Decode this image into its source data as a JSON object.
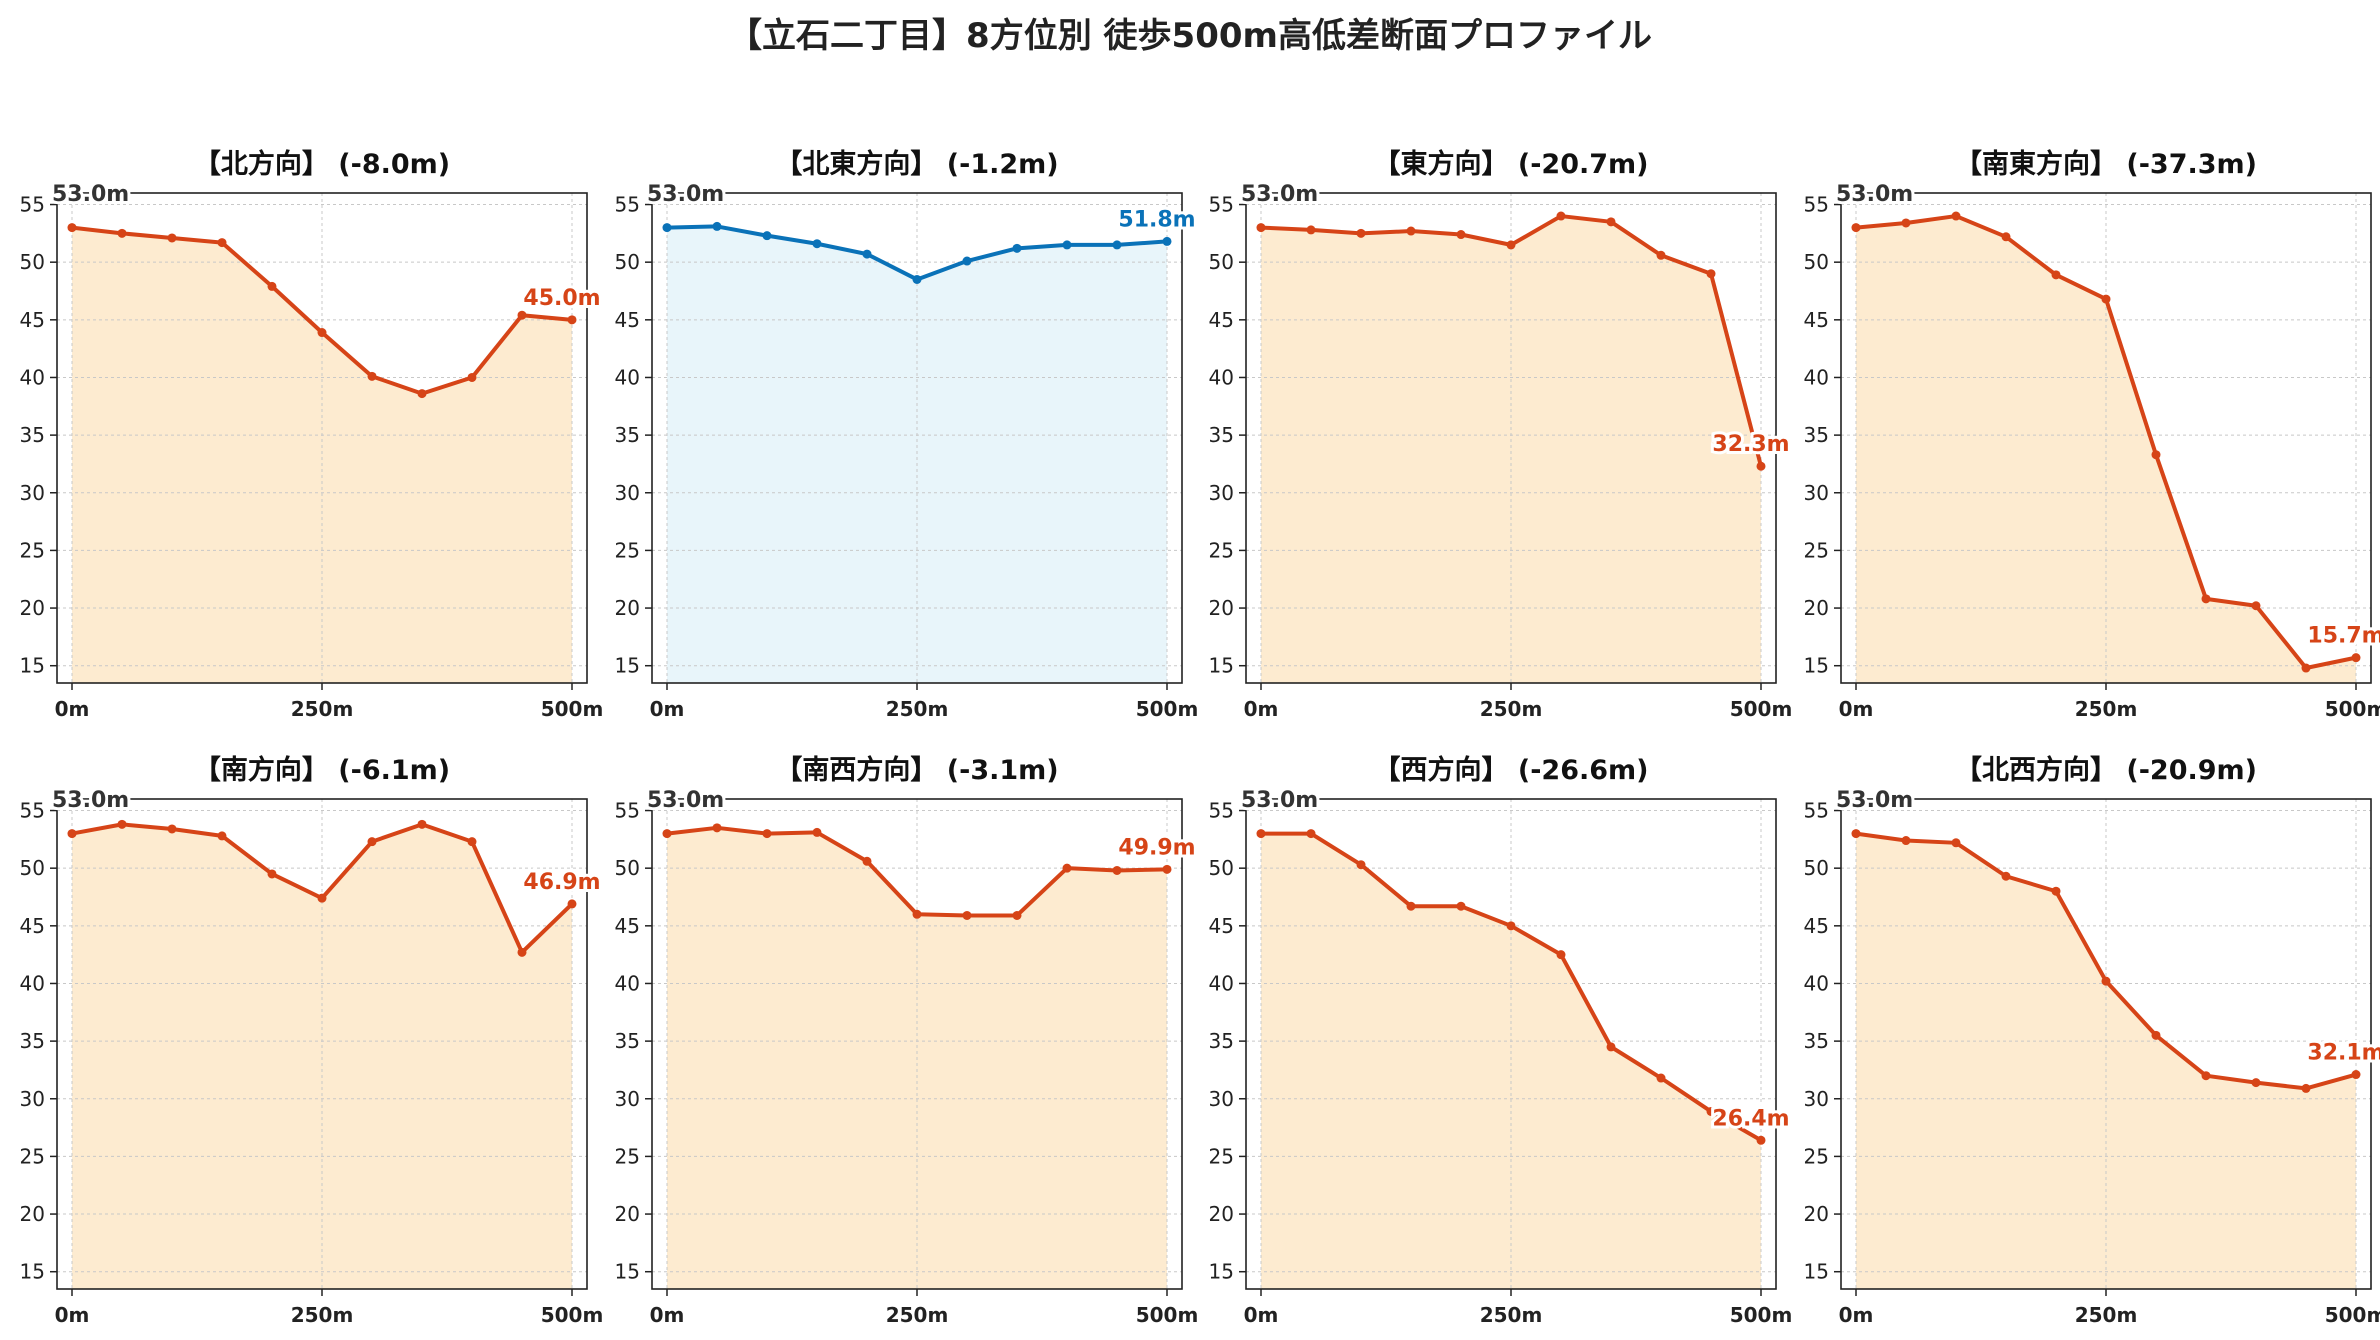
{
  "title": "【立石二丁目】8方位別 徒歩500m高低差断面プロファイル",
  "colors": {
    "down_line": "#d64417",
    "down_fill": "#fdebd0",
    "flat_line": "#0a72b8",
    "flat_fill": "#e8f5fa",
    "axis": "#222222",
    "grid": "#c8c8c8",
    "tick_text": "#222222",
    "start_label_text": "#333333"
  },
  "chart_data": [
    {
      "type": "area",
      "title": "【北方向】 (-8.0m)",
      "style": "down",
      "x": [
        0,
        50,
        100,
        150,
        200,
        250,
        300,
        350,
        400,
        450,
        500
      ],
      "y": [
        53.0,
        52.5,
        52.1,
        51.7,
        47.9,
        43.9,
        40.1,
        38.6,
        40.0,
        45.4,
        45.0
      ],
      "start_label": "53.0m",
      "end_label": "45.0m",
      "xticks": [
        "0m",
        "250m",
        "500m"
      ],
      "yticks": [
        15,
        20,
        25,
        30,
        35,
        40,
        45,
        50,
        55
      ],
      "xlim": [
        0,
        500
      ],
      "ylim": [
        13.5,
        56
      ],
      "grid": true
    },
    {
      "type": "area",
      "title": "【北東方向】 (-1.2m)",
      "style": "flat",
      "x": [
        0,
        50,
        100,
        150,
        200,
        250,
        300,
        350,
        400,
        450,
        500
      ],
      "y": [
        53.0,
        53.1,
        52.3,
        51.6,
        50.7,
        48.5,
        50.1,
        51.2,
        51.5,
        51.5,
        51.8
      ],
      "start_label": "53.0m",
      "end_label": "51.8m",
      "xticks": [
        "0m",
        "250m",
        "500m"
      ],
      "yticks": [
        15,
        20,
        25,
        30,
        35,
        40,
        45,
        50,
        55
      ],
      "xlim": [
        0,
        500
      ],
      "ylim": [
        13.5,
        56
      ],
      "grid": true
    },
    {
      "type": "area",
      "title": "【東方向】 (-20.7m)",
      "style": "down",
      "x": [
        0,
        50,
        100,
        150,
        200,
        250,
        300,
        350,
        400,
        450,
        500
      ],
      "y": [
        53.0,
        52.8,
        52.5,
        52.7,
        52.4,
        51.5,
        54.0,
        53.5,
        50.6,
        49.0,
        32.3
      ],
      "start_label": "53.0m",
      "end_label": "32.3m",
      "xticks": [
        "0m",
        "250m",
        "500m"
      ],
      "yticks": [
        15,
        20,
        25,
        30,
        35,
        40,
        45,
        50,
        55
      ],
      "xlim": [
        0,
        500
      ],
      "ylim": [
        13.5,
        56
      ],
      "grid": true
    },
    {
      "type": "area",
      "title": "【南東方向】 (-37.3m)",
      "style": "down",
      "x": [
        0,
        50,
        100,
        150,
        200,
        250,
        300,
        350,
        400,
        450,
        500
      ],
      "y": [
        53.0,
        53.4,
        54.0,
        52.2,
        48.9,
        46.8,
        33.3,
        20.8,
        20.2,
        14.8,
        15.7
      ],
      "start_label": "53.0m",
      "end_label": "15.7m",
      "xticks": [
        "0m",
        "250m",
        "500m"
      ],
      "yticks": [
        15,
        20,
        25,
        30,
        35,
        40,
        45,
        50,
        55
      ],
      "xlim": [
        0,
        500
      ],
      "ylim": [
        13.5,
        56
      ],
      "grid": true
    },
    {
      "type": "area",
      "title": "【南方向】 (-6.1m)",
      "style": "down",
      "x": [
        0,
        50,
        100,
        150,
        200,
        250,
        300,
        350,
        400,
        450,
        500
      ],
      "y": [
        53.0,
        53.8,
        53.4,
        52.8,
        49.5,
        47.4,
        52.3,
        53.8,
        52.3,
        42.7,
        46.9
      ],
      "start_label": "53.0m",
      "end_label": "46.9m",
      "xticks": [
        "0m",
        "250m",
        "500m"
      ],
      "yticks": [
        15,
        20,
        25,
        30,
        35,
        40,
        45,
        50,
        55
      ],
      "xlim": [
        0,
        500
      ],
      "ylim": [
        13.5,
        56
      ],
      "grid": true
    },
    {
      "type": "area",
      "title": "【南西方向】 (-3.1m)",
      "style": "down",
      "x": [
        0,
        50,
        100,
        150,
        200,
        250,
        300,
        350,
        400,
        450,
        500
      ],
      "y": [
        53.0,
        53.5,
        53.0,
        53.1,
        50.6,
        46.0,
        45.9,
        45.9,
        50.0,
        49.8,
        49.9
      ],
      "start_label": "53.0m",
      "end_label": "49.9m",
      "xticks": [
        "0m",
        "250m",
        "500m"
      ],
      "yticks": [
        15,
        20,
        25,
        30,
        35,
        40,
        45,
        50,
        55
      ],
      "xlim": [
        0,
        500
      ],
      "ylim": [
        13.5,
        56
      ],
      "grid": true
    },
    {
      "type": "area",
      "title": "【西方向】 (-26.6m)",
      "style": "down",
      "x": [
        0,
        50,
        100,
        150,
        200,
        250,
        300,
        350,
        400,
        450,
        500
      ],
      "y": [
        53.0,
        53.0,
        50.3,
        46.7,
        46.7,
        45.0,
        42.5,
        34.5,
        31.8,
        28.9,
        26.4
      ],
      "start_label": "53.0m",
      "end_label": "26.4m",
      "xticks": [
        "0m",
        "250m",
        "500m"
      ],
      "yticks": [
        15,
        20,
        25,
        30,
        35,
        40,
        45,
        50,
        55
      ],
      "xlim": [
        0,
        500
      ],
      "ylim": [
        13.5,
        56
      ],
      "grid": true
    },
    {
      "type": "area",
      "title": "【北西方向】 (-20.9m)",
      "style": "down",
      "x": [
        0,
        50,
        100,
        150,
        200,
        250,
        300,
        350,
        400,
        450,
        500
      ],
      "y": [
        53.0,
        52.4,
        52.2,
        49.3,
        48.0,
        40.2,
        35.5,
        32.0,
        31.4,
        30.9,
        32.1
      ],
      "start_label": "53.0m",
      "end_label": "32.1m",
      "xticks": [
        "0m",
        "250m",
        "500m"
      ],
      "yticks": [
        15,
        20,
        25,
        30,
        35,
        40,
        45,
        50,
        55
      ],
      "xlim": [
        0,
        500
      ],
      "ylim": [
        13.5,
        56
      ],
      "grid": true
    }
  ]
}
